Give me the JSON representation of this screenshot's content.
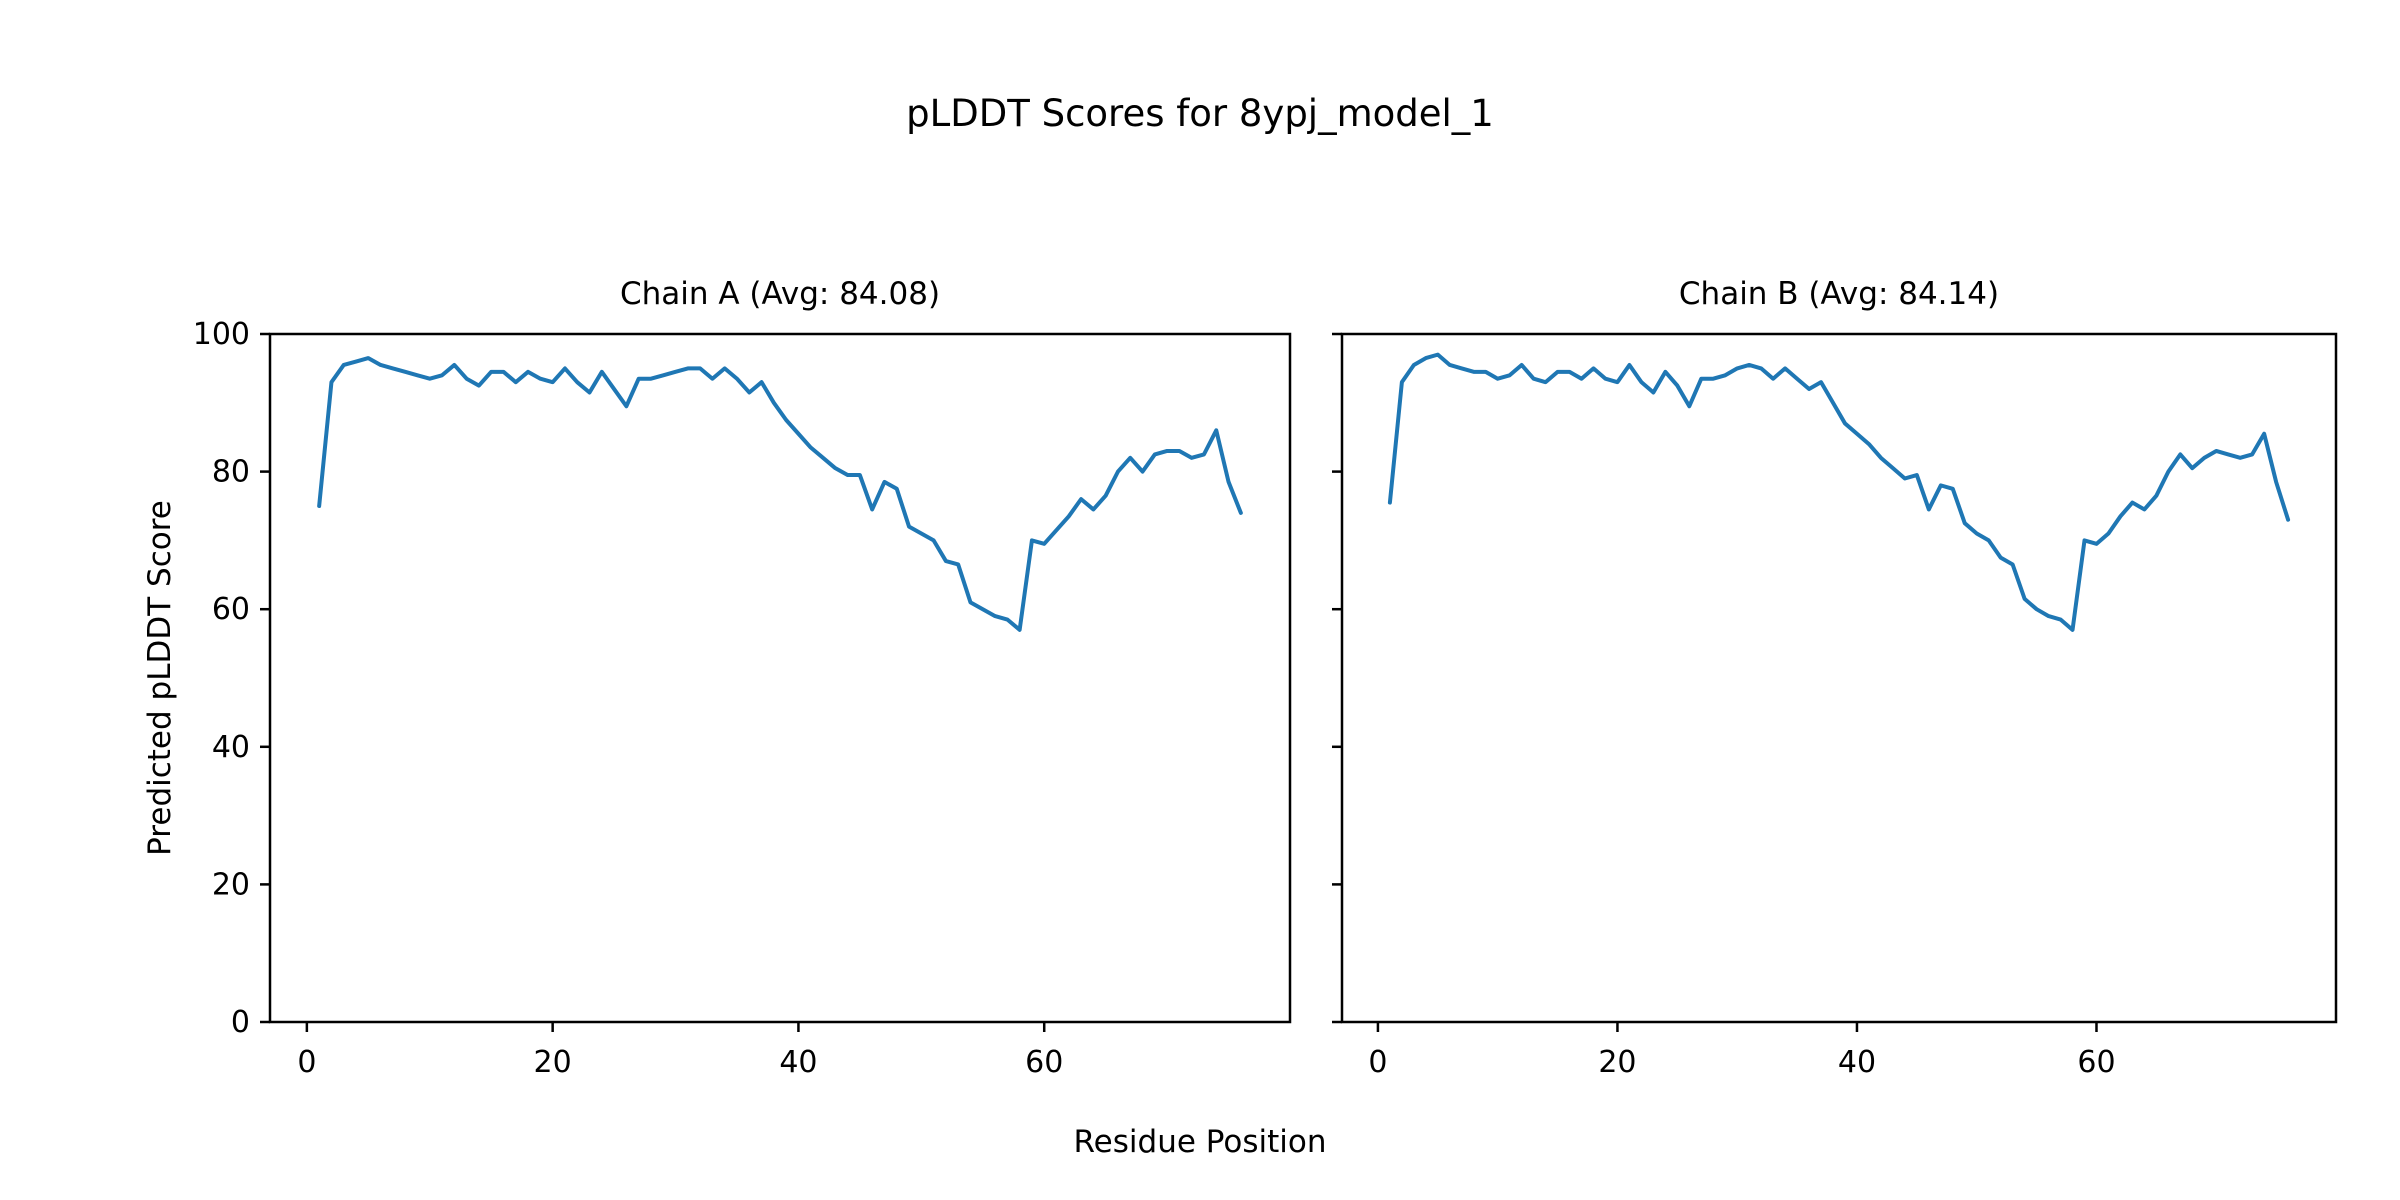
{
  "figure": {
    "title": "pLDDT Scores for 8ypj_model_1",
    "xlabel": "Residue Position",
    "ylabel": "Predicted pLDDT Score",
    "line_color": "#1f77b4",
    "axes_color": "#000000"
  },
  "chart_data": [
    {
      "type": "line",
      "title": "Chain A (Avg: 84.08)",
      "series_name": "Chain A pLDDT",
      "x_start": 1,
      "values": [
        75,
        93,
        95.5,
        96,
        96.5,
        95.5,
        95,
        94.5,
        94,
        93.5,
        94,
        95.5,
        93.5,
        92.5,
        94.5,
        94.5,
        93,
        94.5,
        93.5,
        93,
        95,
        93,
        91.5,
        94.5,
        92,
        89.5,
        93.5,
        93.5,
        94,
        94.5,
        95,
        95,
        93.5,
        95,
        93.5,
        91.5,
        93,
        90,
        87.5,
        85.5,
        83.5,
        82,
        80.5,
        79.5,
        79.5,
        74.5,
        78.5,
        77.5,
        72,
        71,
        70,
        67,
        66.5,
        61,
        60,
        59,
        58.5,
        57,
        70,
        69.5,
        71.5,
        73.5,
        76,
        74.5,
        76.5,
        80,
        82,
        80,
        82.5,
        83,
        83,
        82,
        82.5,
        86,
        78.5,
        74
      ],
      "xticks": [
        0,
        20,
        40,
        60
      ],
      "yticks": [
        0,
        20,
        40,
        60,
        80,
        100
      ],
      "xlim": [
        -3,
        80
      ],
      "ylim": [
        0,
        100
      ],
      "show_ytick_labels": true
    },
    {
      "type": "line",
      "title": "Chain B (Avg: 84.14)",
      "series_name": "Chain B pLDDT",
      "x_start": 1,
      "values": [
        75.5,
        93,
        95.5,
        96.5,
        97,
        95.5,
        95,
        94.5,
        94.5,
        93.5,
        94,
        95.5,
        93.5,
        93,
        94.5,
        94.5,
        93.5,
        95,
        93.5,
        93,
        95.5,
        93,
        91.5,
        94.5,
        92.5,
        89.5,
        93.5,
        93.5,
        94,
        95,
        95.5,
        95,
        93.5,
        95,
        93.5,
        92,
        93,
        90,
        87,
        85.5,
        84,
        82,
        80.5,
        79,
        79.5,
        74.5,
        78,
        77.5,
        72.5,
        71,
        70,
        67.5,
        66.5,
        61.5,
        60,
        59,
        58.5,
        57,
        70,
        69.5,
        71,
        73.5,
        75.5,
        74.5,
        76.5,
        80,
        82.5,
        80.5,
        82,
        83,
        82.5,
        82,
        82.5,
        85.5,
        78.5,
        73
      ],
      "xticks": [
        0,
        20,
        40,
        60
      ],
      "yticks": [
        0,
        20,
        40,
        60,
        80,
        100
      ],
      "xlim": [
        -3,
        80
      ],
      "ylim": [
        0,
        100
      ],
      "show_ytick_labels": false
    }
  ]
}
